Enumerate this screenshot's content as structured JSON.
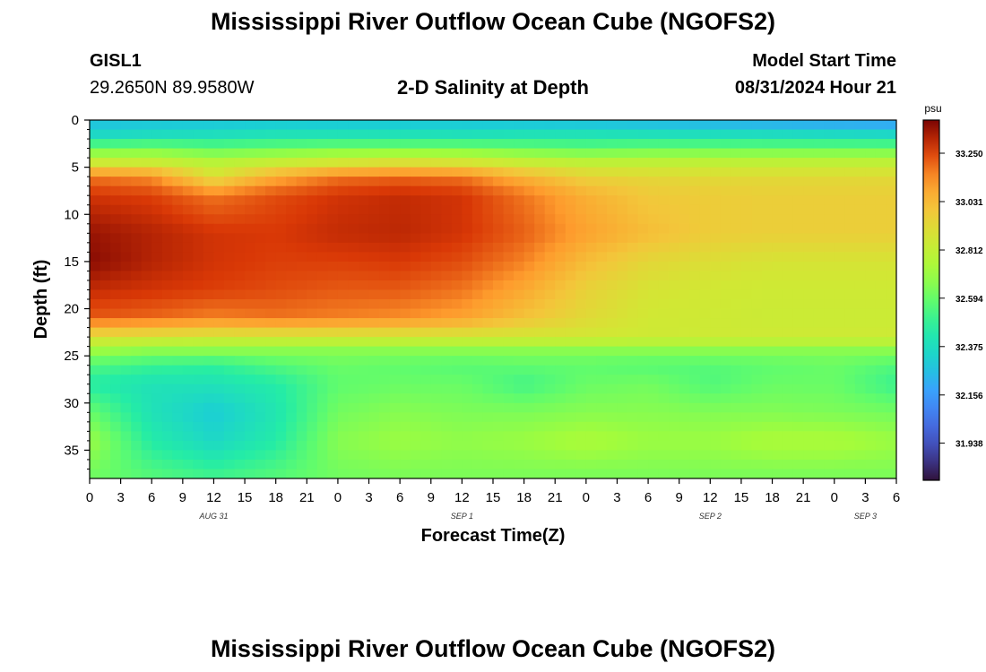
{
  "page": {
    "title": "Mississippi River Outflow Ocean Cube (NGOFS2)",
    "footer_title": "Mississippi River Outflow Ocean Cube (NGOFS2)",
    "station_id": "GISL1",
    "station_coords": "29.2650N  89.9580W",
    "plot_title": "2-D Salinity at Depth",
    "model_start_label": "Model Start Time",
    "model_start_value": "08/31/2024 Hour 21"
  },
  "chart_data": {
    "type": "heatmap",
    "title": "2-D Salinity at Depth",
    "xlabel": "Forecast Time(Z)",
    "ylabel": "Depth (ft)",
    "x_unit": "forecast hour from 00Z Aug 31",
    "xlim": [
      0,
      78
    ],
    "ylim": [
      0,
      38
    ],
    "y_inverted": true,
    "x_tick_labels": [
      "0",
      "3",
      "6",
      "9",
      "12",
      "15",
      "18",
      "21",
      "0",
      "3",
      "6",
      "9",
      "12",
      "15",
      "18",
      "21",
      "0",
      "3",
      "6",
      "9",
      "12",
      "15",
      "18",
      "21",
      "0",
      "3",
      "6"
    ],
    "day_labels": [
      {
        "label": "AUG 31",
        "x": 12
      },
      {
        "label": "SEP 1",
        "x": 36
      },
      {
        "label": "SEP 2",
        "x": 60
      },
      {
        "label": "SEP 3",
        "x": 75
      }
    ],
    "y_ticks": [
      0,
      5,
      10,
      15,
      20,
      25,
      30,
      35
    ],
    "colorbar": {
      "unit": "psu",
      "range": [
        31.77,
        33.4
      ],
      "ticks": [
        "33.250",
        "33.031",
        "32.812",
        "32.594",
        "32.375",
        "32.156",
        "31.938"
      ],
      "colormap": "turbo"
    },
    "time_hours": [
      0,
      6,
      12,
      18,
      24,
      30,
      36,
      42,
      48,
      54,
      60,
      66,
      72,
      78
    ],
    "depth_ft": [
      0,
      1.5,
      3,
      4.5,
      6,
      8,
      12,
      15,
      18,
      21,
      23,
      24.5,
      26,
      28,
      31,
      34,
      37.5
    ],
    "salinity_psu": [
      [
        32.25,
        32.26,
        32.26,
        32.27,
        32.26,
        32.26,
        32.26,
        32.25,
        32.24,
        32.22,
        32.2,
        32.18,
        32.16,
        32.14
      ],
      [
        32.35,
        32.37,
        32.38,
        32.4,
        32.4,
        32.4,
        32.39,
        32.4,
        32.4,
        32.39,
        32.38,
        32.37,
        32.36,
        32.35
      ],
      [
        32.6,
        32.62,
        32.58,
        32.6,
        32.62,
        32.62,
        32.62,
        32.6,
        32.58,
        32.6,
        32.6,
        32.6,
        32.6,
        32.6
      ],
      [
        32.85,
        32.84,
        32.78,
        32.83,
        32.87,
        32.9,
        32.88,
        32.83,
        32.8,
        32.8,
        32.8,
        32.8,
        32.8,
        32.8
      ],
      [
        33.18,
        33.14,
        32.9,
        33.08,
        33.18,
        33.2,
        33.18,
        33.05,
        32.95,
        32.93,
        32.92,
        32.92,
        32.92,
        32.92
      ],
      [
        33.28,
        33.26,
        33.18,
        33.24,
        33.28,
        33.3,
        33.28,
        33.18,
        33.06,
        32.98,
        32.97,
        32.96,
        32.96,
        32.96
      ],
      [
        33.36,
        33.32,
        33.28,
        33.27,
        33.3,
        33.31,
        33.28,
        33.21,
        33.1,
        33.02,
        32.97,
        32.96,
        32.96,
        32.96
      ],
      [
        33.38,
        33.32,
        33.28,
        33.26,
        33.26,
        33.27,
        33.24,
        33.16,
        33.02,
        32.93,
        32.9,
        32.88,
        32.88,
        32.88
      ],
      [
        33.3,
        33.28,
        33.26,
        33.24,
        33.22,
        33.22,
        33.18,
        33.08,
        32.95,
        32.88,
        32.86,
        32.85,
        32.85,
        32.85
      ],
      [
        33.22,
        33.2,
        33.16,
        33.18,
        33.16,
        33.14,
        33.1,
        33.0,
        32.92,
        32.86,
        32.85,
        32.84,
        32.84,
        32.84
      ],
      [
        32.9,
        32.88,
        32.86,
        32.86,
        32.86,
        32.86,
        32.86,
        32.86,
        32.86,
        32.85,
        32.85,
        32.85,
        32.85,
        32.85
      ],
      [
        32.7,
        32.66,
        32.66,
        32.66,
        32.66,
        32.66,
        32.66,
        32.66,
        32.66,
        32.66,
        32.66,
        32.66,
        32.66,
        32.66
      ],
      [
        32.55,
        32.5,
        32.48,
        32.55,
        32.6,
        32.58,
        32.56,
        32.58,
        32.58,
        32.56,
        32.56,
        32.58,
        32.6,
        32.55
      ],
      [
        32.45,
        32.4,
        32.4,
        32.45,
        32.58,
        32.6,
        32.6,
        32.52,
        32.6,
        32.62,
        32.55,
        32.6,
        32.6,
        32.5
      ],
      [
        32.6,
        32.4,
        32.3,
        32.42,
        32.62,
        32.66,
        32.64,
        32.64,
        32.66,
        32.66,
        32.65,
        32.65,
        32.64,
        32.62
      ],
      [
        32.7,
        32.45,
        32.35,
        32.45,
        32.66,
        32.7,
        32.68,
        32.7,
        32.74,
        32.7,
        32.7,
        32.74,
        32.74,
        32.7
      ],
      [
        32.62,
        32.55,
        32.5,
        32.55,
        32.62,
        32.64,
        32.64,
        32.64,
        32.64,
        32.64,
        32.64,
        32.64,
        32.64,
        32.64
      ]
    ]
  }
}
